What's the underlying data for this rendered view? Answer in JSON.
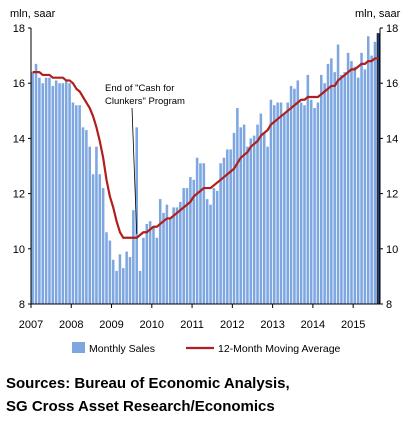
{
  "chart_data": {
    "type": "bar",
    "y_unit_left": "mln, saar",
    "y_unit_right": "mln, saar",
    "ylim": [
      8,
      18
    ],
    "y_ticks": [
      "8",
      "10",
      "12",
      "14",
      "16",
      "18"
    ],
    "x_ticks": [
      "2007",
      "2008",
      "2009",
      "2010",
      "2011",
      "2012",
      "2013",
      "2014",
      "2015"
    ],
    "x_range": [
      "2007-01",
      "2015-08"
    ],
    "grid": false,
    "legend_position": "bottom",
    "annotation": {
      "lines": [
        "End of \"Cash for",
        "Clunkers\" Program"
      ],
      "points_to": "2009-08"
    },
    "bar_color": "#7ea6e0",
    "highlight_bar_color": "#1f3f7a",
    "line_color": "#b01e1e",
    "series": [
      {
        "name": "Monthly Sales",
        "kind": "bar",
        "start": "2007-01",
        "values": [
          16.4,
          16.7,
          16.2,
          16.0,
          16.2,
          16.2,
          15.9,
          16.1,
          16.0,
          16.0,
          16.1,
          16.0,
          15.3,
          15.2,
          15.2,
          14.4,
          14.3,
          13.7,
          12.7,
          13.7,
          12.7,
          12.2,
          10.6,
          10.3,
          9.6,
          9.2,
          9.8,
          9.3,
          9.9,
          9.7,
          11.4,
          14.4,
          9.2,
          10.4,
          10.9,
          11.0,
          10.8,
          10.4,
          11.8,
          11.3,
          11.6,
          11.1,
          11.5,
          11.5,
          11.7,
          12.2,
          12.2,
          12.6,
          12.5,
          13.3,
          13.1,
          13.1,
          11.8,
          11.6,
          12.2,
          12.1,
          13.1,
          13.3,
          13.6,
          13.6,
          14.2,
          15.1,
          14.4,
          14.5,
          13.7,
          14.0,
          14.1,
          14.5,
          14.9,
          14.2,
          13.7,
          15.4,
          15.2,
          15.3,
          15.3,
          14.9,
          15.3,
          15.9,
          15.8,
          16.1,
          15.3,
          15.2,
          16.3,
          15.4,
          15.1,
          15.3,
          16.3,
          16.0,
          16.7,
          16.9,
          16.4,
          17.4,
          16.3,
          16.4,
          17.1,
          16.8,
          16.6,
          16.2,
          17.1,
          16.5,
          17.7,
          17.0,
          17.5,
          17.8
        ]
      },
      {
        "name": "12-Month Moving Average",
        "kind": "line",
        "start": "2007-01",
        "values": [
          16.4,
          16.4,
          16.4,
          16.3,
          16.3,
          16.3,
          16.2,
          16.2,
          16.2,
          16.2,
          16.1,
          16.1,
          16.0,
          15.8,
          15.7,
          15.5,
          15.3,
          15.1,
          14.8,
          14.4,
          13.9,
          13.3,
          12.5,
          11.9,
          11.5,
          11.0,
          10.6,
          10.4,
          10.4,
          10.4,
          10.4,
          10.4,
          10.5,
          10.6,
          10.6,
          10.7,
          10.8,
          10.8,
          10.9,
          11.0,
          11.1,
          11.1,
          11.2,
          11.3,
          11.4,
          11.5,
          11.6,
          11.7,
          11.9,
          12.0,
          12.1,
          12.2,
          12.2,
          12.2,
          12.3,
          12.4,
          12.5,
          12.6,
          12.7,
          12.8,
          12.9,
          13.1,
          13.3,
          13.4,
          13.5,
          13.7,
          13.8,
          13.9,
          14.1,
          14.2,
          14.3,
          14.5,
          14.6,
          14.7,
          14.8,
          14.9,
          15.0,
          15.1,
          15.2,
          15.3,
          15.4,
          15.4,
          15.5,
          15.5,
          15.5,
          15.5,
          15.6,
          15.7,
          15.8,
          15.9,
          15.9,
          16.1,
          16.2,
          16.3,
          16.4,
          16.5,
          16.5,
          16.6,
          16.7,
          16.7,
          16.8,
          16.8,
          16.9,
          16.9
        ]
      }
    ]
  },
  "sources": {
    "line1": "Sources: Bureau of Economic Analysis,",
    "line2": "SG Cross Asset Research/Economics"
  }
}
